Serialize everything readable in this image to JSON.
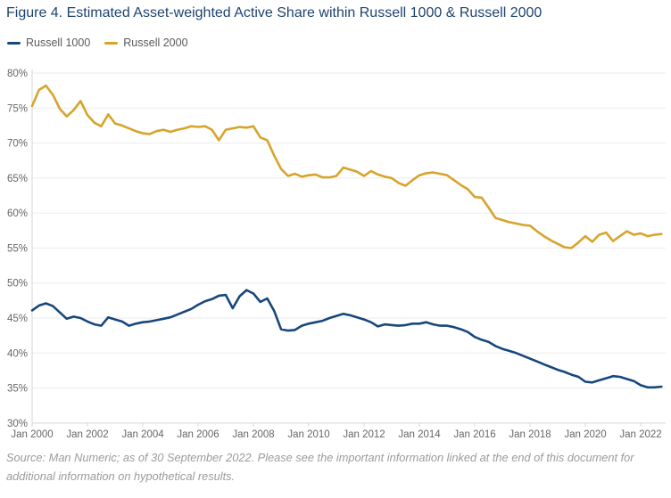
{
  "title": "Figure 4. Estimated Asset-weighted Active Share within Russell 1000 & Russell 2000",
  "legend": {
    "items": [
      {
        "label": "Russell 1000",
        "color": "#17477B"
      },
      {
        "label": "Russell 2000",
        "color": "#D7A42B"
      }
    ]
  },
  "source_note": "Source: Man Numeric; as of 30 September 2022. Please see the important information linked at the end of this document for additional information on hypothetical results.",
  "colors": {
    "title": "#1d4370",
    "axis_text": "#666666",
    "grid": "#ebebeb",
    "axis_line": "#d6d6d6",
    "russell1000": "#17477B",
    "russell2000": "#D7A42B"
  },
  "chart_data": {
    "type": "line",
    "title": "Figure 4. Estimated Asset-weighted Active Share within Russell 1000 & Russell 2000",
    "x_start": "Jan 2000",
    "x_end": "Sep 2022",
    "x_frequency": "quarterly",
    "x_tick_labels": [
      "Jan 2000",
      "Jan 2002",
      "Jan 2004",
      "Jan 2006",
      "Jan 2008",
      "Jan 2010",
      "Jan 2012",
      "Jan 2014",
      "Jan 2016",
      "Jan 2018",
      "Jan 2020",
      "Jan 2022"
    ],
    "y_tick_labels": [
      "30%",
      "35%",
      "40%",
      "45%",
      "50%",
      "55%",
      "60%",
      "65%",
      "70%",
      "75%",
      "80%"
    ],
    "ylim": [
      30,
      80
    ],
    "y_step": 5,
    "grid": "horizontal-only",
    "legend_position": "top-left",
    "series": [
      {
        "name": "Russell 1000",
        "color": "#17477B",
        "values": [
          46.1,
          46.8,
          47.1,
          46.7,
          45.8,
          44.9,
          45.2,
          45.0,
          44.5,
          44.1,
          43.9,
          45.1,
          44.8,
          44.5,
          43.9,
          44.2,
          44.4,
          44.5,
          44.7,
          44.9,
          45.1,
          45.5,
          45.9,
          46.3,
          46.9,
          47.4,
          47.7,
          48.2,
          48.3,
          46.4,
          48.1,
          49.0,
          48.5,
          47.3,
          47.8,
          46.0,
          43.4,
          43.2,
          43.3,
          43.9,
          44.2,
          44.4,
          44.6,
          45.0,
          45.3,
          45.6,
          45.4,
          45.1,
          44.8,
          44.4,
          43.8,
          44.1,
          44.0,
          43.9,
          44.0,
          44.2,
          44.2,
          44.4,
          44.1,
          43.9,
          43.9,
          43.7,
          43.4,
          43.0,
          42.3,
          41.9,
          41.6,
          41.0,
          40.6,
          40.3,
          40.0,
          39.6,
          39.2,
          38.8,
          38.4,
          38.0,
          37.6,
          37.3,
          36.9,
          36.6,
          35.9,
          35.8,
          36.1,
          36.4,
          36.7,
          36.6,
          36.3,
          36.0,
          35.4,
          35.1,
          35.1,
          35.2
        ]
      },
      {
        "name": "Russell 2000",
        "color": "#D7A42B",
        "values": [
          75.3,
          77.6,
          78.2,
          76.9,
          74.9,
          73.8,
          74.7,
          76.0,
          74.0,
          72.9,
          72.4,
          74.1,
          72.8,
          72.5,
          72.1,
          71.7,
          71.4,
          71.3,
          71.7,
          71.9,
          71.6,
          71.9,
          72.1,
          72.4,
          72.3,
          72.4,
          71.9,
          70.4,
          71.9,
          72.1,
          72.3,
          72.2,
          72.4,
          70.8,
          70.4,
          68.2,
          66.3,
          65.3,
          65.6,
          65.2,
          65.4,
          65.5,
          65.1,
          65.1,
          65.3,
          66.5,
          66.2,
          65.9,
          65.3,
          66.0,
          65.5,
          65.2,
          65.0,
          64.3,
          63.9,
          64.7,
          65.4,
          65.7,
          65.8,
          65.6,
          65.4,
          64.7,
          64.0,
          63.4,
          62.3,
          62.2,
          60.8,
          59.3,
          59.0,
          58.7,
          58.5,
          58.3,
          58.2,
          57.4,
          56.7,
          56.1,
          55.6,
          55.1,
          55.0,
          55.8,
          56.7,
          55.9,
          56.9,
          57.2,
          56.0,
          56.7,
          57.4,
          56.9,
          57.1,
          56.7,
          56.9,
          57.0
        ]
      }
    ]
  }
}
